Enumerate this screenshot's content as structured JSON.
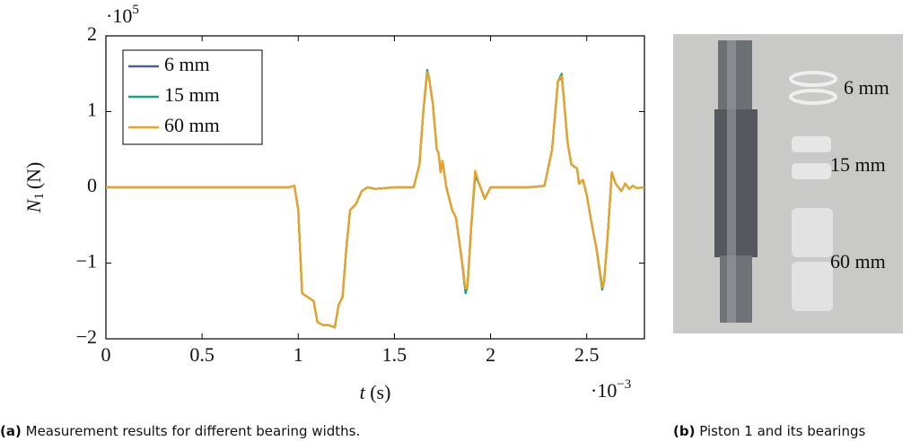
{
  "chart_data": {
    "type": "line",
    "ylabel": {
      "symbol": "N",
      "subscript": "1",
      "unit": "(N)"
    },
    "xlabel": {
      "symbol": "t",
      "unit": "(s)"
    },
    "y_multiplier": {
      "base": "·10",
      "exponent": "5"
    },
    "x_multiplier": {
      "base": "·10",
      "exponent": "−3"
    },
    "xlim": [
      0,
      2.8
    ],
    "ylim": [
      -2,
      2
    ],
    "xticks": [
      0,
      0.5,
      1,
      1.5,
      2,
      2.5
    ],
    "yticks": [
      {
        "value": -2,
        "label": "−2"
      },
      {
        "value": -1,
        "label": "−1"
      },
      0,
      1,
      2
    ],
    "legend": "upper left",
    "x": [
      0,
      0.2,
      0.4,
      0.6,
      0.8,
      0.95,
      0.98,
      1.0,
      1.02,
      1.05,
      1.08,
      1.1,
      1.13,
      1.16,
      1.19,
      1.21,
      1.23,
      1.25,
      1.27,
      1.3,
      1.33,
      1.36,
      1.4,
      1.5,
      1.6,
      1.63,
      1.65,
      1.67,
      1.68,
      1.7,
      1.72,
      1.73,
      1.74,
      1.75,
      1.77,
      1.8,
      1.82,
      1.85,
      1.87,
      1.88,
      1.9,
      1.92,
      1.94,
      1.97,
      2.0,
      2.2,
      2.28,
      2.32,
      2.35,
      2.37,
      2.38,
      2.4,
      2.42,
      2.45,
      2.46,
      2.48,
      2.5,
      2.52,
      2.55,
      2.58,
      2.59,
      2.61,
      2.63,
      2.65,
      2.68,
      2.7,
      2.72,
      2.74,
      2.76,
      2.8
    ],
    "series": [
      {
        "name": "6 mm",
        "color": "#4a5d9e",
        "values": [
          0,
          0,
          0,
          0,
          0,
          0,
          0.02,
          -0.3,
          -1.4,
          -1.45,
          -1.5,
          -1.78,
          -1.82,
          -1.82,
          -1.85,
          -1.55,
          -1.45,
          -0.8,
          -0.3,
          -0.22,
          -0.05,
          0,
          -0.02,
          0,
          0,
          0.3,
          1.0,
          1.5,
          1.45,
          1.1,
          0.5,
          0.45,
          0.2,
          0.35,
          0,
          -0.3,
          -0.4,
          -0.95,
          -1.36,
          -1.3,
          -0.5,
          0.2,
          0.05,
          -0.15,
          0,
          0,
          0.02,
          0.5,
          1.4,
          1.45,
          1.2,
          0.6,
          0.3,
          0.25,
          0.05,
          0.1,
          -0.1,
          -0.4,
          -0.8,
          -1.3,
          -1.25,
          -0.6,
          0.2,
          0.05,
          -0.05,
          0.05,
          -0.02,
          0.02,
          -0.01,
          0
        ]
      },
      {
        "name": "15 mm",
        "color": "#16a085",
        "values": [
          0,
          0,
          0,
          0,
          0,
          0,
          0.02,
          -0.3,
          -1.4,
          -1.45,
          -1.5,
          -1.78,
          -1.82,
          -1.82,
          -1.85,
          -1.55,
          -1.45,
          -0.8,
          -0.3,
          -0.22,
          -0.05,
          0,
          -0.02,
          0,
          0,
          0.3,
          1.0,
          1.55,
          1.45,
          1.1,
          0.5,
          0.45,
          0.2,
          0.35,
          0,
          -0.3,
          -0.4,
          -0.95,
          -1.4,
          -1.3,
          -0.5,
          0.15,
          0.05,
          -0.15,
          0,
          0,
          0.02,
          0.5,
          1.4,
          1.5,
          1.2,
          0.6,
          0.3,
          0.25,
          0.05,
          0.1,
          -0.1,
          -0.4,
          -0.8,
          -1.35,
          -1.25,
          -0.6,
          0.2,
          0.05,
          -0.05,
          0.05,
          -0.02,
          0.02,
          -0.01,
          0
        ]
      },
      {
        "name": "60 mm",
        "color": "#f0a21e",
        "values": [
          0,
          0,
          0,
          0,
          0,
          0,
          0.02,
          -0.3,
          -1.4,
          -1.45,
          -1.5,
          -1.78,
          -1.82,
          -1.82,
          -1.85,
          -1.55,
          -1.45,
          -0.8,
          -0.3,
          -0.22,
          -0.05,
          0,
          -0.02,
          0,
          0,
          0.3,
          1.0,
          1.52,
          1.45,
          1.1,
          0.5,
          0.45,
          0.2,
          0.35,
          0,
          -0.3,
          -0.4,
          -0.95,
          -1.34,
          -1.3,
          -0.5,
          0.22,
          0.05,
          -0.15,
          0,
          0,
          0.02,
          0.5,
          1.4,
          1.47,
          1.2,
          0.6,
          0.3,
          0.25,
          0.05,
          0.1,
          -0.1,
          -0.4,
          -0.8,
          -1.32,
          -1.25,
          -0.6,
          0.2,
          0.05,
          -0.05,
          0.05,
          -0.02,
          0.02,
          -0.01,
          0
        ]
      }
    ]
  },
  "photo": {
    "labels": [
      "6 mm",
      "15 mm",
      "60 mm"
    ]
  },
  "captions": [
    {
      "tag": "(a)",
      "text": "Measurement results for different bearing widths."
    },
    {
      "tag": "(b)",
      "text": "Piston 1 and its bearings"
    }
  ]
}
